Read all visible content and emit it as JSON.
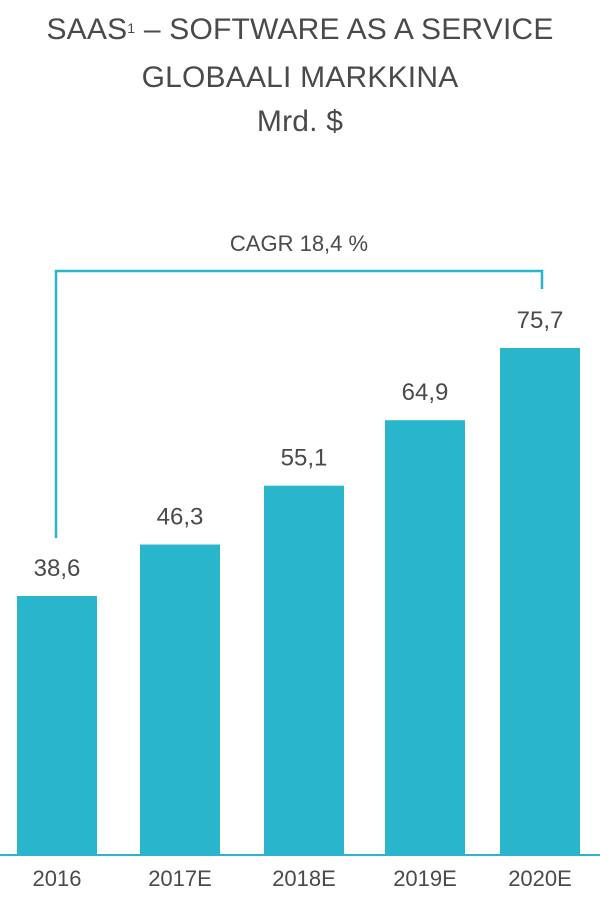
{
  "title": {
    "line1_main": "SAAS",
    "line1_sup": "1",
    "line1_rest": " – SOFTWARE AS A SERVICE",
    "line2": "GLOBAALI MARKKINA",
    "line3": "Mrd. $"
  },
  "colors": {
    "bar": "#29b5cc",
    "bracket": "#29b5cc",
    "axis": "#29b5cc",
    "text": "#4a4a4a"
  },
  "chart_data": {
    "type": "bar",
    "categories": [
      "2016",
      "2017E",
      "2018E",
      "2019E",
      "2020E"
    ],
    "values": [
      38.6,
      46.3,
      55.1,
      64.9,
      75.7
    ],
    "value_labels": [
      "38,6",
      "46,3",
      "55,1",
      "64,9",
      "75,7"
    ],
    "title": "SAAS¹ – SOFTWARE AS A SERVICE GLOBAALI MARKKINA",
    "xlabel": "",
    "ylabel": "Mrd. $",
    "ylim": [
      0,
      75.7
    ],
    "grid": false,
    "legend": "none",
    "annotation": {
      "text": "CAGR 18,4 %",
      "from_category": "2016",
      "to_category": "2020E"
    }
  }
}
